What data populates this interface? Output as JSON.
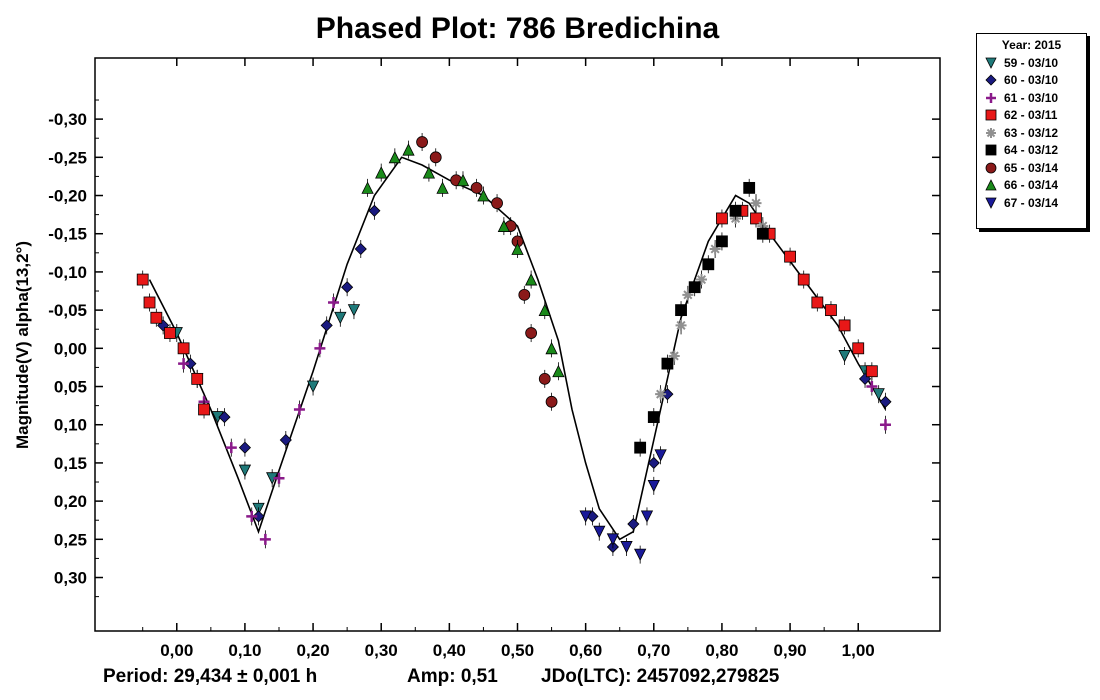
{
  "chart_data": {
    "type": "scatter",
    "title": "Phased Plot: 786 Bredichina",
    "ylabel": "Magnitude(V) alpha(13,2°)",
    "xlabel": "",
    "xlim": [
      -0.12,
      1.12
    ],
    "ylim": [
      0.37,
      -0.38
    ],
    "x_ticks": [
      0.0,
      0.1,
      0.2,
      0.3,
      0.4,
      0.5,
      0.6,
      0.7,
      0.8,
      0.9,
      1.0
    ],
    "x_tick_labels": [
      "0,00",
      "0,10",
      "0,20",
      "0,30",
      "0,40",
      "0,50",
      "0,60",
      "0,70",
      "0,80",
      "0,90",
      "1,00"
    ],
    "y_ticks": [
      -0.3,
      -0.25,
      -0.2,
      -0.15,
      -0.1,
      -0.05,
      0.0,
      0.05,
      0.1,
      0.15,
      0.2,
      0.25,
      0.3
    ],
    "y_tick_labels": [
      "-0,30",
      "-0,25",
      "-0,20",
      "-0,15",
      "-0,10",
      "-0,05",
      "0,00",
      "0,05",
      "0,10",
      "0,15",
      "0,20",
      "0,25",
      "0,30"
    ],
    "legend_title": "Year: 2015",
    "legend_placement": "right",
    "fit_curve": [
      [
        -0.04,
        -0.09
      ],
      [
        0.0,
        -0.02
      ],
      [
        0.05,
        0.08
      ],
      [
        0.09,
        0.17
      ],
      [
        0.12,
        0.24
      ],
      [
        0.15,
        0.16
      ],
      [
        0.2,
        0.03
      ],
      [
        0.25,
        -0.11
      ],
      [
        0.29,
        -0.2
      ],
      [
        0.33,
        -0.25
      ],
      [
        0.36,
        -0.24
      ],
      [
        0.4,
        -0.22
      ],
      [
        0.45,
        -0.2
      ],
      [
        0.5,
        -0.16
      ],
      [
        0.53,
        -0.09
      ],
      [
        0.56,
        -0.01
      ],
      [
        0.58,
        0.08
      ],
      [
        0.6,
        0.15
      ],
      [
        0.62,
        0.21
      ],
      [
        0.65,
        0.25
      ],
      [
        0.67,
        0.24
      ],
      [
        0.7,
        0.12
      ],
      [
        0.74,
        -0.04
      ],
      [
        0.78,
        -0.14
      ],
      [
        0.82,
        -0.2
      ],
      [
        0.84,
        -0.19
      ],
      [
        0.87,
        -0.15
      ],
      [
        0.92,
        -0.09
      ],
      [
        0.97,
        -0.03
      ],
      [
        1.0,
        0.02
      ],
      [
        1.04,
        0.08
      ]
    ],
    "series": [
      {
        "name": "59 - 03/10",
        "marker": "triangle-down",
        "color": "#1f7a7a",
        "points": [
          [
            0.0,
            -0.02
          ],
          [
            0.03,
            0.04
          ],
          [
            0.06,
            0.09
          ],
          [
            0.1,
            0.16
          ],
          [
            0.12,
            0.21
          ],
          [
            0.14,
            0.17
          ],
          [
            0.2,
            0.05
          ],
          [
            0.24,
            -0.04
          ],
          [
            0.26,
            -0.05
          ],
          [
            0.98,
            0.01
          ],
          [
            1.01,
            0.03
          ],
          [
            1.03,
            0.06
          ]
        ]
      },
      {
        "name": "60 - 03/10",
        "marker": "diamond",
        "color": "#1a1a80",
        "points": [
          [
            -0.02,
            -0.03
          ],
          [
            0.02,
            0.02
          ],
          [
            0.07,
            0.09
          ],
          [
            0.1,
            0.13
          ],
          [
            0.12,
            0.22
          ],
          [
            0.16,
            0.12
          ],
          [
            0.22,
            -0.03
          ],
          [
            0.25,
            -0.08
          ],
          [
            0.27,
            -0.13
          ],
          [
            0.29,
            -0.18
          ],
          [
            0.61,
            0.22
          ],
          [
            0.64,
            0.26
          ],
          [
            0.67,
            0.23
          ],
          [
            0.7,
            0.15
          ],
          [
            0.72,
            0.06
          ],
          [
            1.01,
            0.04
          ],
          [
            1.04,
            0.07
          ]
        ]
      },
      {
        "name": "61 - 03/10",
        "marker": "plus",
        "color": "#8a1a8a",
        "points": [
          [
            0.01,
            0.02
          ],
          [
            0.04,
            0.07
          ],
          [
            0.08,
            0.13
          ],
          [
            0.11,
            0.22
          ],
          [
            0.13,
            0.25
          ],
          [
            0.15,
            0.17
          ],
          [
            0.18,
            0.08
          ],
          [
            0.21,
            0.0
          ],
          [
            0.23,
            -0.06
          ],
          [
            1.02,
            0.05
          ],
          [
            1.04,
            0.1
          ]
        ]
      },
      {
        "name": "62 - 03/11",
        "marker": "square",
        "color": "#e81818",
        "points": [
          [
            -0.05,
            -0.09
          ],
          [
            -0.04,
            -0.06
          ],
          [
            -0.03,
            -0.04
          ],
          [
            -0.01,
            -0.02
          ],
          [
            0.01,
            0.0
          ],
          [
            0.03,
            0.04
          ],
          [
            0.04,
            0.08
          ],
          [
            0.8,
            -0.17
          ],
          [
            0.83,
            -0.18
          ],
          [
            0.85,
            -0.17
          ],
          [
            0.87,
            -0.15
          ],
          [
            0.9,
            -0.12
          ],
          [
            0.92,
            -0.09
          ],
          [
            0.94,
            -0.06
          ],
          [
            0.96,
            -0.05
          ],
          [
            0.98,
            -0.03
          ],
          [
            1.0,
            0.0
          ],
          [
            1.02,
            0.03
          ]
        ]
      },
      {
        "name": "63 - 03/12",
        "marker": "star",
        "color": "#909090",
        "points": [
          [
            0.71,
            0.06
          ],
          [
            0.73,
            0.01
          ],
          [
            0.74,
            -0.03
          ],
          [
            0.75,
            -0.07
          ],
          [
            0.77,
            -0.09
          ],
          [
            0.79,
            -0.13
          ],
          [
            0.82,
            -0.17
          ],
          [
            0.85,
            -0.19
          ],
          [
            0.86,
            -0.16
          ]
        ]
      },
      {
        "name": "64 - 03/12",
        "marker": "square",
        "color": "#000000",
        "points": [
          [
            0.68,
            0.13
          ],
          [
            0.7,
            0.09
          ],
          [
            0.72,
            0.02
          ],
          [
            0.74,
            -0.05
          ],
          [
            0.76,
            -0.08
          ],
          [
            0.78,
            -0.11
          ],
          [
            0.8,
            -0.14
          ],
          [
            0.82,
            -0.18
          ],
          [
            0.84,
            -0.21
          ],
          [
            0.86,
            -0.15
          ]
        ]
      },
      {
        "name": "65 - 03/14",
        "marker": "circle",
        "color": "#8b1a1a",
        "points": [
          [
            0.36,
            -0.27
          ],
          [
            0.38,
            -0.25
          ],
          [
            0.41,
            -0.22
          ],
          [
            0.44,
            -0.21
          ],
          [
            0.47,
            -0.19
          ],
          [
            0.49,
            -0.16
          ],
          [
            0.5,
            -0.14
          ],
          [
            0.51,
            -0.07
          ],
          [
            0.52,
            -0.02
          ],
          [
            0.54,
            0.04
          ],
          [
            0.55,
            0.07
          ]
        ]
      },
      {
        "name": "66 - 03/14",
        "marker": "triangle-up",
        "color": "#1a8a1a",
        "points": [
          [
            0.28,
            -0.21
          ],
          [
            0.3,
            -0.23
          ],
          [
            0.32,
            -0.25
          ],
          [
            0.34,
            -0.26
          ],
          [
            0.37,
            -0.23
          ],
          [
            0.39,
            -0.21
          ],
          [
            0.42,
            -0.22
          ],
          [
            0.45,
            -0.2
          ],
          [
            0.48,
            -0.16
          ],
          [
            0.5,
            -0.13
          ],
          [
            0.52,
            -0.09
          ],
          [
            0.54,
            -0.05
          ],
          [
            0.55,
            0.0
          ],
          [
            0.56,
            0.03
          ]
        ]
      },
      {
        "name": "67 - 03/14",
        "marker": "triangle-down",
        "color": "#1a1a9a",
        "points": [
          [
            0.6,
            0.22
          ],
          [
            0.62,
            0.24
          ],
          [
            0.64,
            0.25
          ],
          [
            0.66,
            0.26
          ],
          [
            0.68,
            0.27
          ],
          [
            0.69,
            0.22
          ],
          [
            0.7,
            0.18
          ],
          [
            0.71,
            0.14
          ]
        ]
      }
    ]
  },
  "footer": {
    "period": "Period: 29,434 ± 0,001 h",
    "amp": "Amp: 0,51",
    "jdo": "JDo(LTC): 2457092,279825"
  }
}
